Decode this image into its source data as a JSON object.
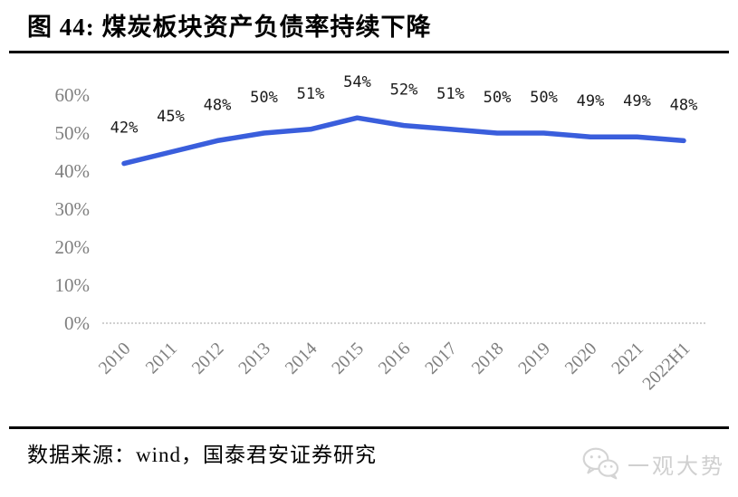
{
  "header": {
    "title": "图 44:  煤炭板块资产负债率持续下降"
  },
  "chart_data": {
    "type": "line",
    "title": "煤炭板块资产负债率持续下降",
    "categories": [
      "2010",
      "2011",
      "2012",
      "2013",
      "2014",
      "2015",
      "2016",
      "2017",
      "2018",
      "2019",
      "2020",
      "2021",
      "2022H1"
    ],
    "values": [
      42,
      45,
      48,
      50,
      51,
      54,
      52,
      51,
      50,
      50,
      49,
      49,
      48
    ],
    "data_labels": [
      "42%",
      "45%",
      "48%",
      "50%",
      "51%",
      "54%",
      "52%",
      "51%",
      "50%",
      "50%",
      "49%",
      "49%",
      "48%"
    ],
    "ylim": [
      0,
      60
    ],
    "ytick_labels": [
      "0%",
      "10%",
      "20%",
      "30%",
      "40%",
      "50%",
      "60%"
    ],
    "xlabel": "",
    "ylabel": "",
    "grid": false,
    "legend": "none",
    "line_color": "#3a5edc",
    "axis_line_color": "#c0c0c0",
    "data_label_color": "#1a1a1a",
    "tick_label_color": "#7f7f7f"
  },
  "footer": {
    "source": "数据来源：wind，国泰君安证券研究"
  },
  "watermark": {
    "text": "一观大势",
    "icon": "wechat-icon"
  }
}
